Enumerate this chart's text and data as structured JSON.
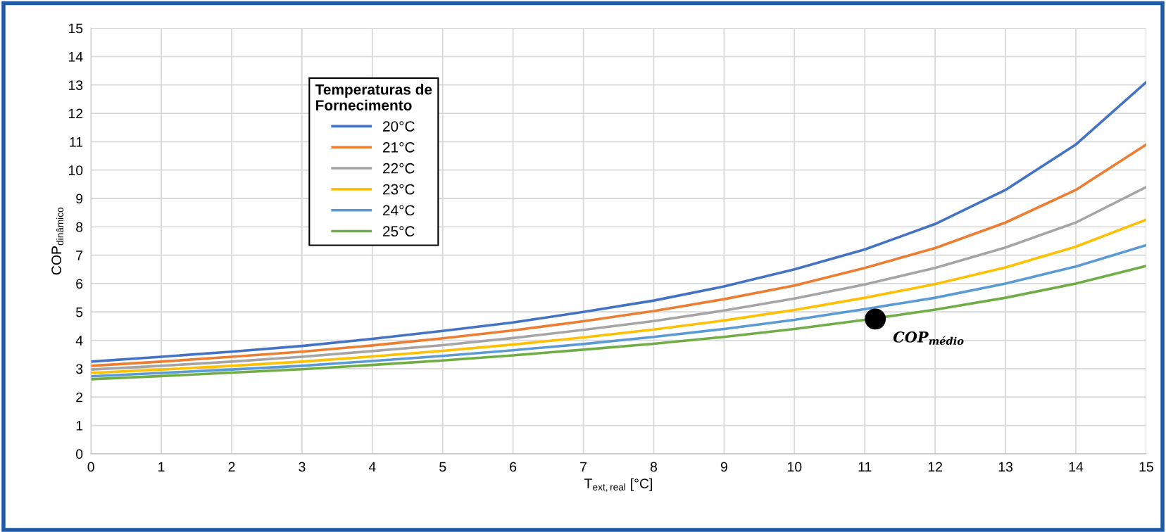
{
  "chart_data": {
    "type": "line",
    "xlabel": "T$_{ext,real}$ [°C]",
    "ylabel": "COP$_{dinâmico}$",
    "legend_title": "Temperaturas de\nFornecimento",
    "x": [
      0,
      1,
      2,
      3,
      4,
      5,
      6,
      7,
      8,
      9,
      10,
      11,
      12,
      13,
      14,
      15
    ],
    "xlim": [
      0,
      15
    ],
    "xticks": [
      0,
      1,
      2,
      3,
      4,
      5,
      6,
      7,
      8,
      9,
      10,
      11,
      12,
      13,
      14,
      15
    ],
    "ylim": [
      0,
      15
    ],
    "yticks": [
      0,
      1,
      2,
      3,
      4,
      5,
      6,
      7,
      8,
      9,
      10,
      11,
      12,
      13,
      14,
      15
    ],
    "grid": true,
    "legend": "top left",
    "marker": "none",
    "line_style": "solid",
    "series": [
      {
        "name": "20°C",
        "color": "#4472c4",
        "values": [
          3.25,
          3.42,
          3.6,
          3.8,
          4.05,
          4.33,
          4.63,
          5.0,
          5.4,
          5.9,
          6.5,
          7.2,
          8.1,
          9.3,
          10.9,
          13.1
        ]
      },
      {
        "name": "21°C",
        "color": "#ed7d31",
        "values": [
          3.1,
          3.25,
          3.42,
          3.6,
          3.82,
          4.07,
          4.35,
          4.67,
          5.03,
          5.45,
          5.93,
          6.55,
          7.25,
          8.15,
          9.3,
          10.9
        ]
      },
      {
        "name": "22°C",
        "color": "#a5a5a5",
        "values": [
          2.97,
          3.1,
          3.25,
          3.42,
          3.62,
          3.83,
          4.08,
          4.37,
          4.68,
          5.05,
          5.47,
          5.97,
          6.55,
          7.27,
          8.15,
          9.4
        ]
      },
      {
        "name": "23°C",
        "color": "#ffc000",
        "values": [
          2.85,
          2.97,
          3.1,
          3.25,
          3.43,
          3.63,
          3.85,
          4.1,
          4.38,
          4.7,
          5.07,
          5.5,
          5.98,
          6.57,
          7.3,
          8.25
        ]
      },
      {
        "name": "24°C",
        "color": "#5b9bd5",
        "values": [
          2.73,
          2.85,
          2.97,
          3.1,
          3.27,
          3.45,
          3.65,
          3.87,
          4.12,
          4.4,
          4.72,
          5.1,
          5.5,
          6.0,
          6.6,
          7.35
        ]
      },
      {
        "name": "25°C",
        "color": "#70ad47",
        "values": [
          2.63,
          2.74,
          2.86,
          2.98,
          3.13,
          3.29,
          3.47,
          3.67,
          3.88,
          4.12,
          4.4,
          4.72,
          5.08,
          5.5,
          6.0,
          6.62
        ]
      },
      {
        "type": "scatter",
        "color": "#000000",
        "marker": "circle",
        "x": [
          11.15
        ],
        "values": [
          4.75
        ]
      }
    ],
    "annotations": [
      {
        "text": "COP$_{médio}$",
        "x": 11.15,
        "y": 4.75
      }
    ]
  }
}
